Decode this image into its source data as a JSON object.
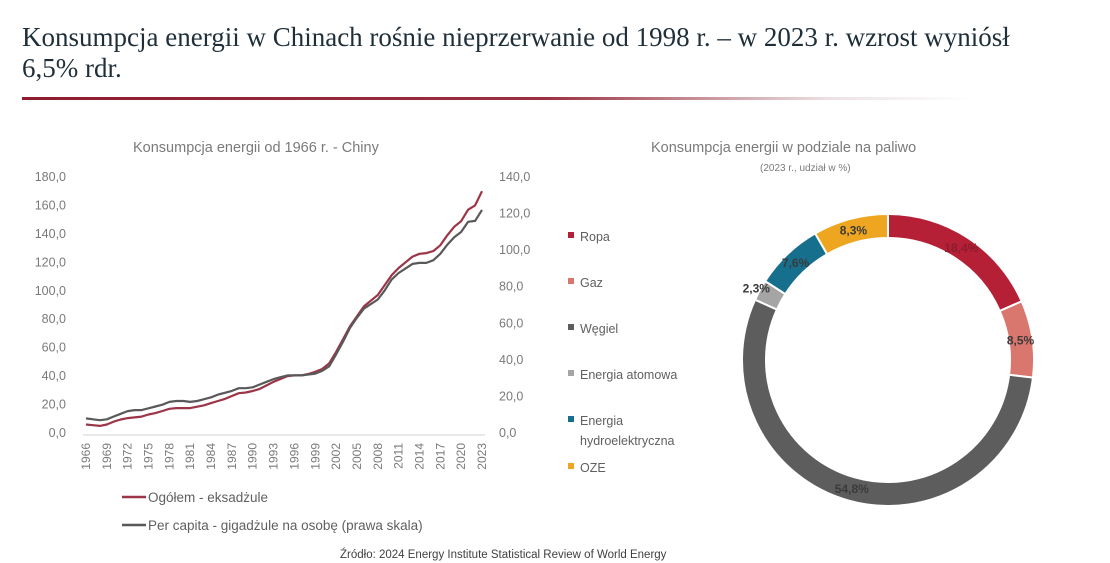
{
  "slide": {
    "title": "Konsumpcja energii w Chinach rośnie nieprzerwanie od 1998 r. – w 2023 r. wzrost wyniósł 6,5% rdr.",
    "source": "Źródło: 2024 Energy Institute Statistical Review of World Energy"
  },
  "colors": {
    "accent": "#8e1c2e",
    "primary_line": "#9b3547",
    "secondary_line": "#595959"
  },
  "chart_data": [
    {
      "type": "line",
      "title": "Konsumpcja energii od 1966 r. - Chiny",
      "x": [
        1966,
        1967,
        1968,
        1969,
        1970,
        1971,
        1972,
        1973,
        1974,
        1975,
        1976,
        1977,
        1978,
        1979,
        1980,
        1981,
        1982,
        1983,
        1984,
        1985,
        1986,
        1987,
        1988,
        1989,
        1990,
        1991,
        1992,
        1993,
        1994,
        1995,
        1996,
        1997,
        1998,
        1999,
        2000,
        2001,
        2002,
        2003,
        2004,
        2005,
        2006,
        2007,
        2008,
        2009,
        2010,
        2011,
        2012,
        2013,
        2014,
        2015,
        2016,
        2017,
        2018,
        2019,
        2020,
        2021,
        2022,
        2023
      ],
      "x_tick_labels": [
        "1966",
        "1969",
        "1972",
        "1975",
        "1978",
        "1981",
        "1984",
        "1987",
        "1990",
        "1993",
        "1996",
        "1999",
        "2002",
        "2005",
        "2008",
        "2011",
        "2014",
        "2017",
        "2020",
        "2023"
      ],
      "y_left": {
        "ylim": [
          0,
          180
        ],
        "ticks": [
          "0,0",
          "20,0",
          "40,0",
          "60,0",
          "80,0",
          "100,0",
          "120,0",
          "140,0",
          "160,0",
          "180,0"
        ]
      },
      "y_right": {
        "ylim": [
          0,
          140
        ],
        "ticks": [
          "0,0",
          "20,0",
          "40,0",
          "60,0",
          "80,0",
          "100,0",
          "120,0",
          "140,0"
        ]
      },
      "series": [
        {
          "name": "Ogółem - eksadżule",
          "axis": "left",
          "color": "#9b3547",
          "values": [
            6.0,
            5.5,
            5.0,
            6.0,
            8.0,
            9.5,
            10.5,
            11.0,
            11.5,
            13.0,
            14.0,
            15.5,
            17.0,
            17.5,
            17.5,
            17.5,
            18.5,
            19.5,
            21.0,
            22.5,
            24.0,
            26.0,
            28.0,
            28.5,
            29.5,
            31.0,
            33.5,
            36.0,
            38.0,
            40.0,
            40.5,
            40.5,
            41.5,
            43.0,
            45.0,
            49.0,
            57.0,
            66.0,
            75.0,
            82.0,
            89.0,
            93.0,
            97.0,
            104.0,
            111.0,
            116.0,
            120.0,
            124.0,
            126.0,
            126.5,
            128.0,
            132.0,
            139.0,
            145.0,
            149.0,
            157.0,
            160.0,
            170.0
          ]
        },
        {
          "name": "Per capita - gigadżule na osobę (prawa skala)",
          "axis": "right",
          "color": "#595959",
          "values": [
            8.0,
            7.5,
            7.0,
            7.5,
            9.0,
            10.5,
            12.0,
            12.5,
            12.5,
            13.5,
            14.5,
            15.5,
            17.0,
            17.5,
            17.5,
            17.0,
            17.5,
            18.5,
            19.5,
            21.0,
            22.0,
            23.0,
            24.5,
            24.5,
            25.0,
            26.5,
            28.0,
            29.5,
            30.5,
            31.5,
            31.5,
            31.5,
            32.0,
            32.5,
            34.0,
            36.5,
            43.0,
            50.0,
            57.5,
            63.0,
            68.0,
            70.5,
            73.0,
            78.0,
            84.0,
            87.5,
            90.0,
            92.5,
            93.0,
            93.0,
            94.5,
            98.0,
            103.0,
            107.0,
            110.0,
            115.5,
            116.0,
            122.0
          ]
        }
      ]
    },
    {
      "type": "pie",
      "title": "Konsumpcja energii w podziale na paliwo",
      "subtitle": "(2023 r., udział w %)",
      "slices": [
        {
          "label": "Ropa",
          "value": 18.4,
          "value_label": "18,4%",
          "color": "#b52036",
          "label_color": "#8e1c2e"
        },
        {
          "label": "Gaz",
          "value": 8.5,
          "value_label": "8,5%",
          "color": "#d9776e",
          "label_color": "#3a3a3a"
        },
        {
          "label": "Węgiel",
          "value": 54.8,
          "value_label": "54,8%",
          "color": "#5d5d5d",
          "label_color": "#3a3a3a"
        },
        {
          "label": "Energia atomowa",
          "value": 2.3,
          "value_label": "2,3%",
          "color": "#a5a5a5",
          "label_color": "#3a3a3a"
        },
        {
          "label": "Energia hydroelektryczna",
          "label_lines": [
            "Energia",
            "hydroelektryczna"
          ],
          "value": 7.6,
          "value_label": "7,6%",
          "color": "#176f8e",
          "label_color": "#3a3a3a"
        },
        {
          "label": "OZE",
          "value": 8.3,
          "value_label": "8,3%",
          "color": "#eea620",
          "label_color": "#3a3a3a"
        }
      ]
    }
  ]
}
